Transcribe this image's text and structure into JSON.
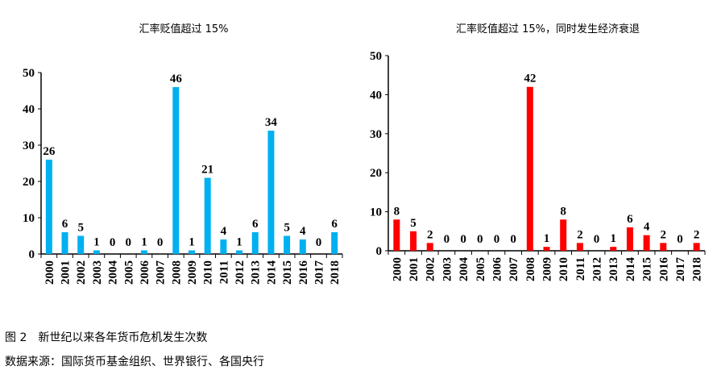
{
  "chart_data": [
    {
      "type": "bar",
      "title": "汇率贬值超过 15%",
      "xlabel": "",
      "ylabel": "",
      "ylim": [
        0,
        50
      ],
      "yticks": [
        0,
        10,
        20,
        30,
        40,
        50
      ],
      "color": "#00B0F0",
      "categories": [
        "2000",
        "2001",
        "2002",
        "2003",
        "2004",
        "2005",
        "2006",
        "2007",
        "2008",
        "2009",
        "2010",
        "2011",
        "2012",
        "2013",
        "2014",
        "2015",
        "2016",
        "2017",
        "2018"
      ],
      "values": [
        26,
        6,
        5,
        1,
        0,
        0,
        1,
        0,
        46,
        1,
        21,
        4,
        1,
        6,
        34,
        5,
        4,
        0,
        6
      ]
    },
    {
      "type": "bar",
      "title": "汇率贬值超过 15%，同时发生经济衰退",
      "xlabel": "",
      "ylabel": "",
      "ylim": [
        0,
        50
      ],
      "yticks": [
        0,
        10,
        20,
        30,
        40,
        50
      ],
      "color": "#FF0000",
      "categories": [
        "2000",
        "2001",
        "2002",
        "2003",
        "2004",
        "2005",
        "2006",
        "2007",
        "2008",
        "2009",
        "2010",
        "2011",
        "2012",
        "2013",
        "2014",
        "2015",
        "2016",
        "2017",
        "2018"
      ],
      "values": [
        8,
        5,
        2,
        0,
        0,
        0,
        0,
        0,
        42,
        1,
        8,
        2,
        0,
        1,
        6,
        4,
        2,
        0,
        2
      ]
    }
  ],
  "caption": {
    "figure": "图 2　新世纪以来各年货币危机发生次数",
    "source": "数据来源：国际货币基金组织、世界银行、各国央行"
  }
}
